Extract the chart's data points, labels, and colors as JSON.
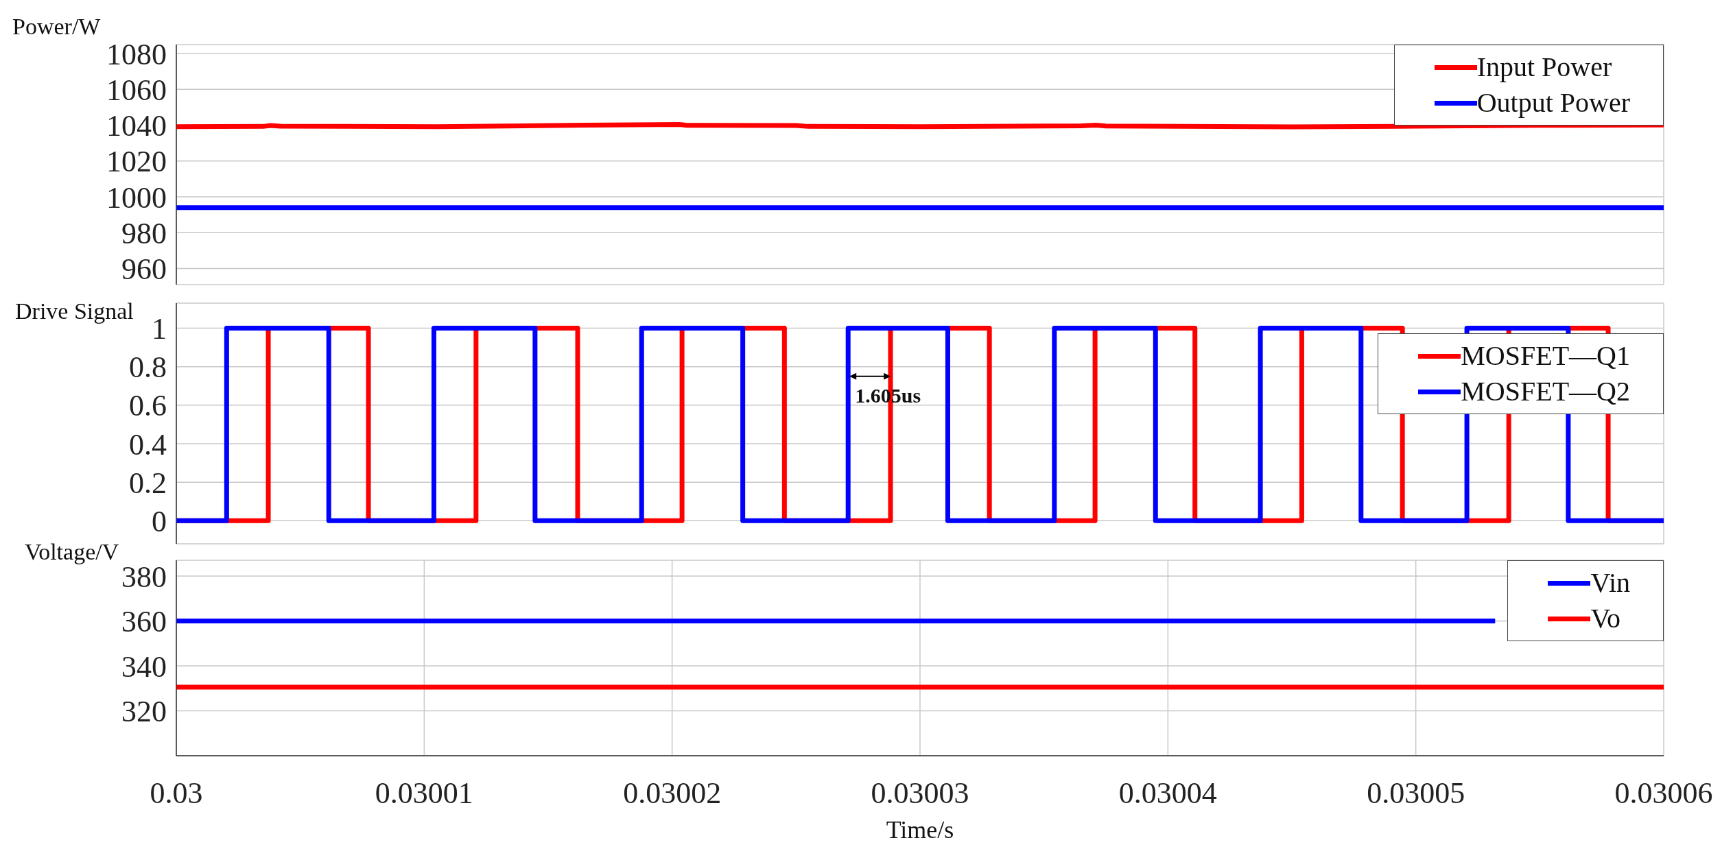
{
  "chart_data": [
    {
      "type": "line",
      "ylabel": "Power/W",
      "xlim": [
        0.03,
        0.03006
      ],
      "xticks": [
        0.03,
        0.03001,
        0.03002,
        0.03003,
        0.03004,
        0.03005,
        0.03006
      ],
      "ylim": [
        951,
        1085
      ],
      "yticks": [
        960,
        980,
        1000,
        1020,
        1040,
        1060,
        1080
      ],
      "grid": true,
      "legend": "top right",
      "tick_labels": "y",
      "series": [
        {
          "name": "Input Power",
          "color": "#ff0000",
          "x": [
            0.03,
            0.0300035,
            0.0300038,
            0.0300042,
            0.0300105,
            0.0300165,
            0.0300203,
            0.0300206,
            0.030025,
            0.0300255,
            0.03003,
            0.0300365,
            0.0300371,
            0.0300375,
            0.030045,
            0.03005,
            0.030055,
            0.03006
          ],
          "values": [
            1039.2,
            1039.3,
            1039.8,
            1039.4,
            1039.2,
            1040.0,
            1040.4,
            1039.9,
            1039.8,
            1039.3,
            1039.2,
            1039.6,
            1040.0,
            1039.5,
            1039.1,
            1039.4,
            1039.9,
            1040.1
          ]
        },
        {
          "name": "Output Power",
          "color": "#0000ff",
          "x": [
            0.03,
            0.03006
          ],
          "values": [
            994,
            994
          ]
        }
      ]
    },
    {
      "type": "step",
      "ylabel": "Drive Signal",
      "xlim": [
        0.03,
        0.03006
      ],
      "xticks": [
        0.03,
        0.03001,
        0.03002,
        0.03003,
        0.03004,
        0.03005,
        0.03006
      ],
      "ylim": [
        -0.12,
        1.13
      ],
      "yticks": [
        0,
        0.2,
        0.4,
        0.6,
        0.8,
        1
      ],
      "grid": true,
      "legend": "top right",
      "tick_labels": "y",
      "annotations": [
        {
          "text": "1.605us",
          "x": 0.0300271,
          "y": 0.75
        }
      ],
      "series": [
        {
          "name": "MOSFET—Q1",
          "color": "#ff0000",
          "x": [
            0.03,
            0.03000371,
            0.03000775,
            0.03001209,
            0.03001619,
            0.0300204,
            0.03002453,
            0.03002881,
            0.0300328,
            0.03003706,
            0.03004109,
            0.0300454,
            0.03004946,
            0.03005375,
            0.03005776,
            0.03006
          ],
          "values": [
            0,
            1,
            0,
            1,
            0,
            1,
            0,
            1,
            0,
            1,
            0,
            1,
            0,
            1,
            0,
            0
          ]
        },
        {
          "name": "MOSFET—Q2",
          "color": "#0000ff",
          "x": [
            0.03,
            0.03000203,
            0.03000615,
            0.03001039,
            0.03001447,
            0.03001877,
            0.03002285,
            0.0300271,
            0.03003112,
            0.03003542,
            0.0300395,
            0.03004373,
            0.03004779,
            0.03005206,
            0.03005615,
            0.03006
          ],
          "values": [
            0,
            1,
            0,
            1,
            0,
            1,
            0,
            1,
            0,
            1,
            0,
            1,
            0,
            1,
            0,
            0
          ]
        }
      ]
    },
    {
      "type": "line",
      "ylabel": "Voltage/V",
      "xlabel": "Time/s",
      "xlim": [
        0.03,
        0.03006
      ],
      "xticks": [
        0.03,
        0.03001,
        0.03002,
        0.03003,
        0.03004,
        0.03005,
        0.03006
      ],
      "ylim": [
        300,
        387
      ],
      "yticks": [
        320,
        340,
        360,
        380
      ],
      "grid": true,
      "legend": "top right",
      "series": [
        {
          "name": "Vin",
          "color": "#0000ff",
          "x": [
            0.03,
            0.0300532
          ],
          "values": [
            360,
            360
          ]
        },
        {
          "name": "Vo",
          "color": "#ff0000",
          "x": [
            0.03,
            0.03006
          ],
          "values": [
            330.5,
            330.5
          ]
        }
      ]
    }
  ]
}
